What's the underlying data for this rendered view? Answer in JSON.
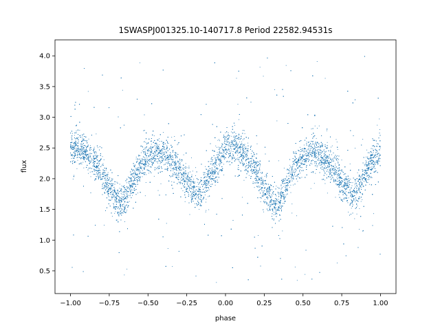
{
  "chart_data": {
    "type": "scatter",
    "title": "1SWASPJ001325.10-140717.8 Period 22582.94531s",
    "xlabel": "phase",
    "ylabel": "flux",
    "xlim": [
      -1.1,
      1.1
    ],
    "ylim": [
      0.13,
      4.26
    ],
    "grid": false,
    "legend": "none",
    "point_color": "#1f77b4",
    "x_ticks": [
      {
        "value": -1.0,
        "label": "−1.00"
      },
      {
        "value": -0.75,
        "label": "−0.75"
      },
      {
        "value": -0.5,
        "label": "−0.50"
      },
      {
        "value": -0.25,
        "label": "−0.25"
      },
      {
        "value": 0.0,
        "label": "0.00"
      },
      {
        "value": 0.25,
        "label": "0.25"
      },
      {
        "value": 0.5,
        "label": "0.50"
      },
      {
        "value": 0.75,
        "label": "0.75"
      },
      {
        "value": 1.0,
        "label": "1.00"
      }
    ],
    "y_ticks": [
      {
        "value": 0.5,
        "label": "0.5"
      },
      {
        "value": 1.0,
        "label": "1.0"
      },
      {
        "value": 1.5,
        "label": "1.5"
      },
      {
        "value": 2.0,
        "label": "2.0"
      },
      {
        "value": 2.5,
        "label": "2.5"
      },
      {
        "value": 3.0,
        "label": "3.0"
      },
      {
        "value": 3.5,
        "label": "3.5"
      },
      {
        "value": 4.0,
        "label": "4.0"
      }
    ],
    "trend": {
      "x": [
        -1.0,
        -0.95,
        -0.9,
        -0.85,
        -0.8,
        -0.75,
        -0.7,
        -0.68,
        -0.65,
        -0.6,
        -0.55,
        -0.5,
        -0.45,
        -0.4,
        -0.35,
        -0.3,
        -0.25,
        -0.2,
        -0.18,
        -0.15,
        -0.1,
        -0.05,
        0.0,
        0.05,
        0.1,
        0.15,
        0.2,
        0.25,
        0.3,
        0.32,
        0.35,
        0.4,
        0.45,
        0.5,
        0.55,
        0.6,
        0.65,
        0.7,
        0.75,
        0.8,
        0.82,
        0.85,
        0.9,
        0.95,
        1.0
      ],
      "y": [
        2.47,
        2.5,
        2.45,
        2.3,
        2.1,
        1.85,
        1.65,
        1.6,
        1.65,
        1.95,
        2.2,
        2.35,
        2.42,
        2.4,
        2.3,
        2.15,
        1.95,
        1.78,
        1.75,
        1.8,
        2.05,
        2.3,
        2.45,
        2.5,
        2.45,
        2.3,
        2.1,
        1.85,
        1.65,
        1.6,
        1.65,
        1.95,
        2.2,
        2.35,
        2.42,
        2.4,
        2.3,
        2.15,
        1.95,
        1.78,
        1.75,
        1.8,
        2.05,
        2.3,
        2.45
      ],
      "scatter_sigma": 0.13,
      "outlier_range": [
        0.3,
        4.0
      ],
      "n_points": 14000
    }
  }
}
